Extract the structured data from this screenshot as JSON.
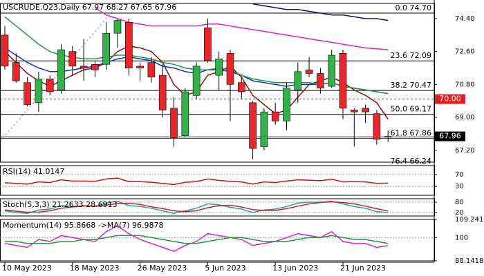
{
  "chart_data": [
    {
      "type": "candlestick",
      "title": "USCRUDE.Q23,Daily  67.97 68.27 67.65 67.96",
      "categories": [
        "10 May 2023",
        null,
        null,
        null,
        null,
        null,
        "18 May 2023",
        null,
        null,
        null,
        null,
        null,
        "26 May 2023",
        null,
        null,
        null,
        null,
        null,
        "5 Jun 2023",
        null,
        null,
        null,
        null,
        null,
        "13 Jun 2023",
        null,
        null,
        null,
        null,
        null,
        "21 Jun 2023",
        null,
        null,
        null,
        null
      ],
      "open": [
        73.5,
        72.0,
        70.9,
        69.8,
        71.1,
        70.5,
        72.6,
        71.8,
        71.9,
        71.9,
        73.6,
        74.2,
        71.8,
        72.0,
        71.3,
        69.5,
        68.0,
        70.2,
        73.9,
        71.3,
        72.5,
        70.9,
        69.8,
        67.4,
        69.3,
        68.8,
        70.5,
        71.6,
        71.4,
        70.7,
        72.5,
        69.4,
        69.5,
        69.2,
        67.97
      ],
      "high": [
        74.0,
        72.5,
        71.2,
        71.5,
        71.3,
        73.0,
        72.9,
        73.3,
        72.1,
        74.2,
        74.4,
        74.4,
        72.0,
        72.3,
        71.9,
        70.1,
        70.6,
        72.0,
        74.4,
        72.6,
        72.7,
        71.2,
        69.9,
        69.5,
        69.8,
        70.9,
        72.0,
        72.3,
        71.7,
        72.7,
        72.7,
        69.5,
        69.7,
        69.4,
        68.27
      ],
      "low": [
        71.6,
        70.9,
        69.6,
        69.3,
        70.2,
        70.3,
        71.3,
        71.0,
        71.2,
        71.6,
        72.8,
        71.3,
        71.0,
        70.9,
        69.0,
        67.4,
        67.9,
        70.0,
        72.0,
        70.5,
        68.8,
        70.0,
        66.7,
        67.2,
        68.6,
        68.3,
        69.8,
        71.2,
        70.3,
        70.6,
        68.9,
        67.4,
        68.7,
        67.5,
        67.65
      ],
      "close": [
        71.8,
        71.0,
        69.7,
        71.1,
        70.4,
        72.7,
        71.8,
        71.7,
        71.6,
        73.6,
        74.3,
        71.7,
        71.7,
        71.2,
        69.4,
        67.9,
        70.4,
        71.8,
        72.1,
        72.2,
        70.8,
        70.4,
        67.3,
        69.3,
        68.8,
        70.6,
        71.5,
        71.4,
        70.6,
        72.4,
        69.5,
        69.3,
        69.3,
        67.8,
        67.96
      ],
      "up_color": "#33b24a",
      "down_color": "#e8262b",
      "series": [
        {
          "color": "#8b1010",
          "values": [
            72.6,
            72.0,
            71.4,
            71.0,
            70.7,
            71.0,
            71.3,
            71.6,
            71.7,
            72.0,
            72.6,
            72.9,
            72.8,
            72.6,
            72.0,
            70.8,
            70.2,
            70.4,
            71.3,
            71.5,
            71.8,
            71.2,
            70.2,
            69.7,
            69.2,
            69.4,
            70.1,
            70.8,
            71.0,
            71.2,
            70.9,
            70.5,
            70.2,
            69.8,
            68.9
          ]
        },
        {
          "color": "#1030e0",
          "values": [
            72.8,
            72.4,
            72.0,
            71.7,
            71.5,
            71.5,
            71.6,
            71.7,
            71.8,
            72.0,
            72.2,
            72.3,
            72.2,
            72.1,
            71.8,
            71.7,
            71.5,
            71.4,
            71.6,
            71.6,
            71.5,
            71.3,
            71.0,
            70.9,
            70.8,
            70.7,
            70.8,
            70.8,
            70.8,
            70.9,
            70.7,
            70.6,
            70.5,
            70.4,
            70.3
          ]
        },
        {
          "color": "#1f9a3a",
          "values": [
            74.5,
            74.0,
            73.5,
            73.0,
            72.6,
            72.4,
            72.3,
            72.2,
            72.2,
            72.3,
            72.4,
            72.4,
            72.3,
            72.2,
            72.0,
            71.9,
            71.7,
            71.6,
            71.6,
            71.7,
            71.6,
            71.3,
            71.1,
            71.0,
            70.9,
            70.9,
            70.9,
            70.9,
            70.8,
            70.9,
            70.7,
            70.6,
            70.5,
            70.4,
            70.3
          ]
        },
        {
          "color": "#e020d0",
          "values": [
            null,
            null,
            null,
            null,
            null,
            null,
            null,
            null,
            75.0,
            74.6,
            74.4,
            74.2,
            74.1,
            74.0,
            74.0,
            74.0,
            74.0,
            74.0,
            74.1,
            74.1,
            74.0,
            73.9,
            73.8,
            73.7,
            73.6,
            73.5,
            73.4,
            73.3,
            73.2,
            73.1,
            73.0,
            72.9,
            72.8,
            72.75,
            72.7
          ]
        },
        {
          "color": "#101070",
          "values": [
            null,
            null,
            null,
            null,
            null,
            null,
            null,
            null,
            null,
            null,
            null,
            null,
            null,
            null,
            null,
            null,
            null,
            null,
            null,
            null,
            null,
            null,
            75.2,
            75.1,
            75.0,
            74.9,
            74.9,
            74.8,
            74.7,
            74.6,
            74.6,
            74.5,
            74.4,
            74.4,
            74.3
          ]
        }
      ],
      "ylim": [
        66.55,
        75.23
      ],
      "yticks": [
        {
          "value": 74.4,
          "label": "74.40"
        },
        {
          "value": 72.6,
          "label": "72.60"
        },
        {
          "value": 70.8,
          "label": "70.80"
        },
        {
          "value": 69.0,
          "label": "69.00"
        },
        {
          "value": 67.2,
          "label": "67.20"
        }
      ],
      "fib_levels": [
        {
          "value": 74.7,
          "label": "0.0 74.70"
        },
        {
          "value": 72.09,
          "label": "23.6 72.09"
        },
        {
          "value": 70.47,
          "label": "38.2 70.47"
        },
        {
          "value": 69.17,
          "label": "50.0 69.17"
        },
        {
          "value": 67.86,
          "label": "61.8 67.86"
        },
        {
          "value": 66.24,
          "label": "76.4 66.24"
        }
      ],
      "alert_level": {
        "value": 70,
        "label": "70.00"
      },
      "last_price": {
        "value": 67.96,
        "label": "67.96"
      }
    },
    {
      "type": "line",
      "title": "RSI(14) 41.0147",
      "series": [
        {
          "color": "#d01010",
          "values": [
            42,
            40,
            38,
            45,
            43,
            52,
            48,
            48,
            47,
            55,
            58,
            46,
            46,
            44,
            40,
            36,
            44,
            46,
            55,
            50,
            47,
            45,
            38,
            45,
            43,
            48,
            52,
            51,
            49,
            54,
            45,
            46,
            45,
            40,
            41.0147
          ]
        }
      ],
      "ylim": [
        0,
        100
      ],
      "yticks": [
        70,
        30
      ]
    },
    {
      "type": "line",
      "title": "Stoch(5,3,3) 21.2633 28.6913",
      "series": [
        {
          "color": "#20a0b0",
          "values": [
            30,
            20,
            15,
            35,
            40,
            60,
            55,
            60,
            55,
            75,
            85,
            60,
            55,
            45,
            30,
            15,
            30,
            45,
            70,
            65,
            50,
            40,
            20,
            35,
            40,
            55,
            75,
            80,
            80,
            85,
            70,
            55,
            45,
            25,
            21.2633
          ]
        },
        {
          "color": "#d02020",
          "values": [
            35,
            28,
            22,
            23,
            30,
            45,
            52,
            58,
            57,
            63,
            72,
            73,
            67,
            53,
            43,
            30,
            25,
            30,
            48,
            60,
            62,
            52,
            37,
            32,
            32,
            43,
            57,
            70,
            78,
            82,
            78,
            70,
            57,
            42,
            28.6913
          ]
        }
      ],
      "ylim": [
        0,
        100
      ],
      "yticks": [
        80,
        20
      ]
    },
    {
      "type": "line",
      "title": "Momentum(14) 95.8668  ->MA(7) 96.9878",
      "series": [
        {
          "color": "#e020d0",
          "values": [
            97,
            96,
            95,
            99,
            98,
            101,
            100,
            99,
            98,
            103,
            106,
            102,
            99,
            97,
            95,
            93,
            96,
            98,
            102,
            101,
            100,
            99,
            96,
            97,
            98,
            100,
            102,
            101,
            100,
            103,
            98,
            97,
            97,
            95,
            95.8668
          ]
        },
        {
          "color": "#1f9a3a",
          "values": [
            98,
            98,
            97,
            97,
            97,
            98,
            98,
            99,
            99,
            100,
            101,
            101,
            101,
            100,
            99,
            98,
            97,
            97,
            98,
            99,
            100,
            100,
            99,
            98,
            98,
            98,
            99,
            100,
            100,
            101,
            100,
            99,
            99,
            98,
            96.9878
          ]
        }
      ],
      "ylim": [
        88.1418,
        109.241
      ],
      "yticks": [
        109.241,
        100,
        88.1418
      ]
    }
  ]
}
